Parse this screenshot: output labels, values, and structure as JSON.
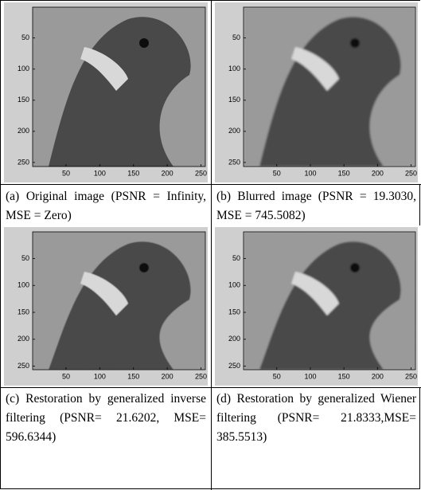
{
  "ticks": [
    50,
    100,
    150,
    200,
    250
  ],
  "panels": [
    {
      "caption": "(a) Original image (PSNR = Infinity, MSE = Zero)"
    },
    {
      "caption": "(b) Blurred image (PSNR = 19.3030, MSE = 745.5082)"
    },
    {
      "caption": "(c) Restoration by generalized inverse filtering (PSNR= 21.6202, MSE= 596.6344)"
    },
    {
      "caption": "(d) Restoration by generalized Wiener filtering (PSNR= 21.8333,MSE= 385.5513)"
    }
  ]
}
